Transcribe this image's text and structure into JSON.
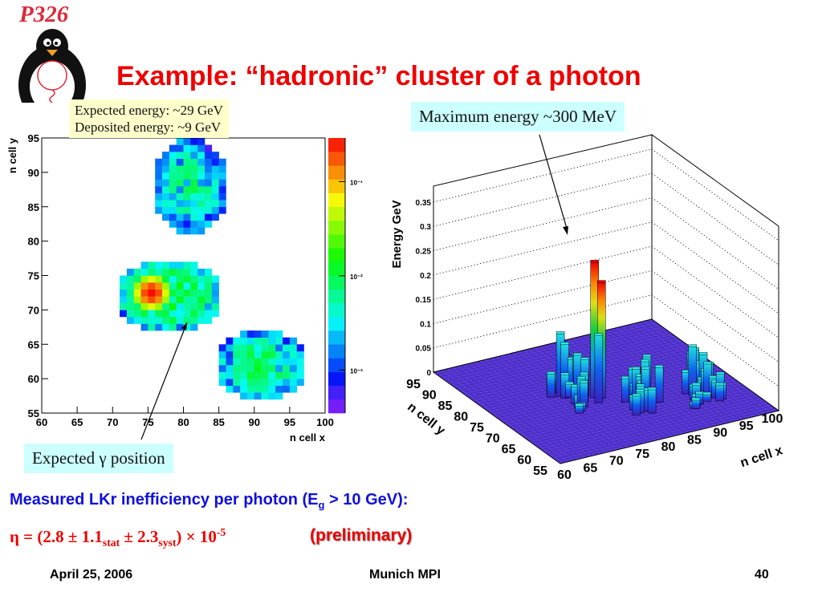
{
  "logo": {
    "text": "P326"
  },
  "title": "Example: “hadronic” cluster of a photon",
  "notes": {
    "expected_energy": "Expected energy: ~29 GeV",
    "deposited_energy": "Deposited energy: ~9 GeV",
    "max_energy": "Maximum energy ~300 MeV",
    "expected_position": "Expected γ position"
  },
  "result": {
    "measured_prefix": "Measured LKr inefficiency per photon  (E",
    "measured_sub": "g",
    "measured_suffix": " > 10 GeV):",
    "eta_a": "η = (2.8 ± 1.1",
    "eta_sub1": "stat",
    "eta_b": " ± 2.3",
    "eta_sub2": "syst",
    "eta_c": ") × 10",
    "eta_sup": "-5",
    "preliminary": "(preliminary)"
  },
  "footer": {
    "date": "April 25, 2006",
    "venue": "Munich MPI",
    "page": "40"
  },
  "chart_data": [
    {
      "type": "heatmap",
      "xlabel": "n cell x",
      "ylabel": "n cell y",
      "xlim": [
        60,
        100
      ],
      "ylim": [
        55,
        95
      ],
      "xticks": [
        "60",
        "65",
        "70",
        "75",
        "80",
        "85",
        "90",
        "95",
        "100"
      ],
      "yticks": [
        "55",
        "60",
        "65",
        "70",
        "75",
        "80",
        "85",
        "90",
        "95"
      ],
      "colorbar": {
        "scale": "log",
        "range": [
          0.00035,
          0.29
        ],
        "ticks": [
          "10⁻³",
          "10⁻²",
          "10⁻¹"
        ]
      },
      "clusters": [
        {
          "cx": 81,
          "cy": 88,
          "rx": 5.5,
          "ry": 7,
          "level": 0.006
        },
        {
          "cx": 78,
          "cy": 72,
          "rx": 7.5,
          "ry": 5.5,
          "level": 0.012
        },
        {
          "cx": 91,
          "cy": 62,
          "rx": 6.5,
          "ry": 5,
          "level": 0.008
        }
      ],
      "hotspot": {
        "x": 75,
        "y": 72,
        "value": 0.28
      }
    },
    {
      "type": "lego3d",
      "xlabel": "n cell x",
      "ylabel": "n cell y",
      "zlabel": "Energy GeV",
      "xticks": [
        "60",
        "65",
        "70",
        "75",
        "80",
        "85",
        "90",
        "95",
        "100"
      ],
      "yticks": [
        "95",
        "90",
        "85",
        "80",
        "75",
        "70",
        "65",
        "60",
        "55"
      ],
      "zticks": [
        "0",
        "0.05",
        "0.1",
        "0.15",
        "0.2",
        "0.25",
        "0.3",
        "0.35"
      ],
      "zlim": [
        0,
        0.35
      ],
      "max_value": 0.28
    }
  ]
}
